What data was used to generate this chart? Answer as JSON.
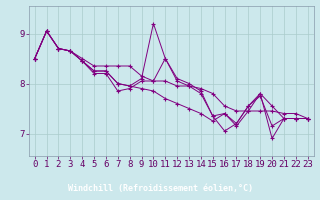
{
  "title": "",
  "xlabel": "Windchill (Refroidissement éolien,°C)",
  "background_color": "#cce8ec",
  "plot_bg_color": "#cce8ec",
  "label_bg_color": "#7b0d7b",
  "label_text_color": "#ffffff",
  "line_color": "#800080",
  "grid_color": "#aacccc",
  "xlim": [
    -0.5,
    23.5
  ],
  "ylim": [
    6.55,
    9.55
  ],
  "yticks": [
    7,
    8,
    9
  ],
  "xticks": [
    0,
    1,
    2,
    3,
    4,
    5,
    6,
    7,
    8,
    9,
    10,
    11,
    12,
    13,
    14,
    15,
    16,
    17,
    18,
    19,
    20,
    21,
    22,
    23
  ],
  "series": [
    [
      8.5,
      9.05,
      8.7,
      8.65,
      8.45,
      8.2,
      8.2,
      7.85,
      7.9,
      8.05,
      8.05,
      8.5,
      8.05,
      7.95,
      7.8,
      7.35,
      7.05,
      7.2,
      7.55,
      7.75,
      7.15,
      7.3,
      7.3,
      7.3
    ],
    [
      8.5,
      9.05,
      8.7,
      8.65,
      8.5,
      8.35,
      8.35,
      8.35,
      8.35,
      8.15,
      8.05,
      8.05,
      7.95,
      7.95,
      7.9,
      7.8,
      7.55,
      7.45,
      7.45,
      7.45,
      7.45,
      7.4,
      7.4,
      7.3
    ],
    [
      8.5,
      9.05,
      8.7,
      8.65,
      8.45,
      8.25,
      8.25,
      8.0,
      7.95,
      8.1,
      9.2,
      8.5,
      8.1,
      8.0,
      7.85,
      7.35,
      7.4,
      7.2,
      7.55,
      7.8,
      6.9,
      7.3,
      7.3,
      7.3
    ],
    [
      8.5,
      9.05,
      8.7,
      8.65,
      8.45,
      8.25,
      8.25,
      8.0,
      7.95,
      7.9,
      7.85,
      7.7,
      7.6,
      7.5,
      7.4,
      7.25,
      7.4,
      7.15,
      7.45,
      7.8,
      7.55,
      7.3,
      7.3,
      7.3
    ]
  ],
  "marker_size": 3,
  "linewidth": 0.7,
  "tick_fontsize": 6.5,
  "label_fontsize": 6.0
}
